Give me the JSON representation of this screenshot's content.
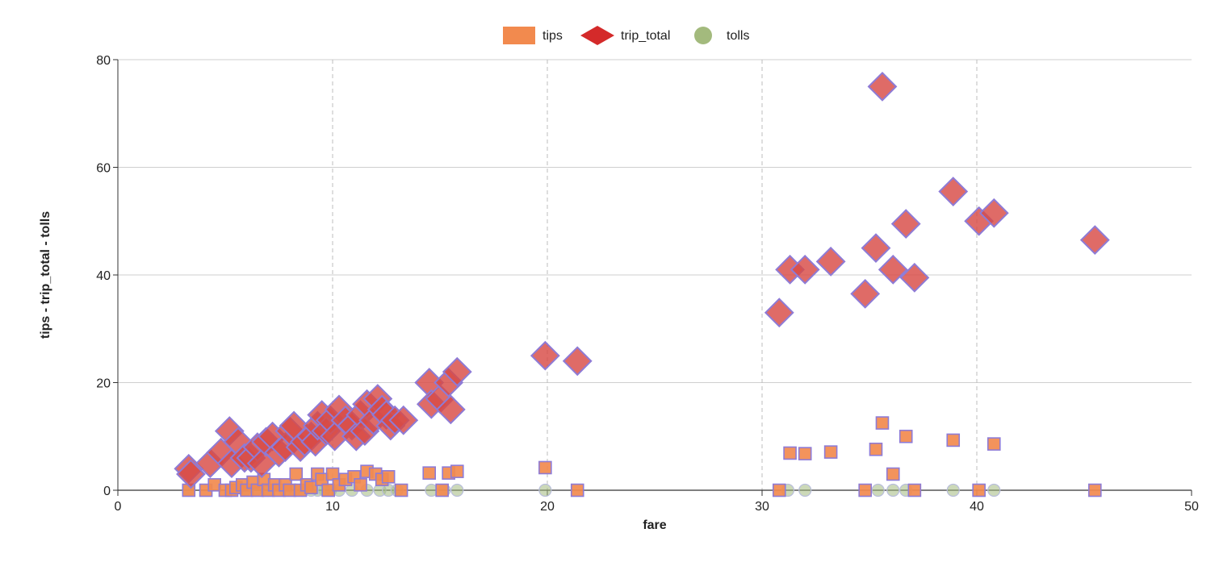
{
  "chart_data": {
    "type": "scatter",
    "title": "",
    "xlabel": "fare",
    "ylabel": "tips - trip_total - tolls",
    "xlim": [
      0,
      50
    ],
    "ylim": [
      0,
      80
    ],
    "x_ticks": [
      0,
      10,
      20,
      30,
      40,
      50
    ],
    "y_ticks": [
      0,
      20,
      40,
      60,
      80
    ],
    "x_grid": "dashed",
    "y_grid": "solid",
    "legend_position": "top-center",
    "series": [
      {
        "name": "tips",
        "marker": "square",
        "color": "#f28a4e",
        "edge_color": "#8e7bd6",
        "points": [
          [
            3.3,
            0
          ],
          [
            4.1,
            0
          ],
          [
            4.5,
            1
          ],
          [
            5.0,
            0
          ],
          [
            5.3,
            0
          ],
          [
            5.5,
            0.5
          ],
          [
            5.8,
            1
          ],
          [
            6.0,
            0
          ],
          [
            6.3,
            1.5
          ],
          [
            6.5,
            0
          ],
          [
            6.8,
            2
          ],
          [
            7.0,
            0
          ],
          [
            7.3,
            1
          ],
          [
            7.5,
            0
          ],
          [
            7.8,
            1
          ],
          [
            8.0,
            0
          ],
          [
            8.3,
            3
          ],
          [
            8.5,
            0
          ],
          [
            8.8,
            1
          ],
          [
            9.0,
            0.5
          ],
          [
            9.3,
            3
          ],
          [
            9.5,
            2
          ],
          [
            9.8,
            0
          ],
          [
            10.0,
            3
          ],
          [
            10.3,
            1
          ],
          [
            10.6,
            2
          ],
          [
            11.0,
            2.5
          ],
          [
            11.3,
            1
          ],
          [
            11.6,
            3.5
          ],
          [
            12.0,
            3
          ],
          [
            12.3,
            2
          ],
          [
            12.6,
            2.5
          ],
          [
            13.2,
            0
          ],
          [
            14.5,
            3.2
          ],
          [
            15.1,
            0
          ],
          [
            15.4,
            3.2
          ],
          [
            15.8,
            3.5
          ],
          [
            19.9,
            4.2
          ],
          [
            21.4,
            0
          ],
          [
            30.8,
            0
          ],
          [
            31.3,
            6.9
          ],
          [
            32.0,
            6.8
          ],
          [
            33.2,
            7.1
          ],
          [
            34.8,
            0
          ],
          [
            35.3,
            7.6
          ],
          [
            35.6,
            12.5
          ],
          [
            36.1,
            3
          ],
          [
            36.7,
            10
          ],
          [
            37.1,
            0
          ],
          [
            38.9,
            9.3
          ],
          [
            40.1,
            0
          ],
          [
            40.8,
            8.6
          ],
          [
            45.5,
            0
          ]
        ]
      },
      {
        "name": "trip_total",
        "marker": "diamond",
        "color": "#d84a45",
        "edge_color": "#8e7bd6",
        "points": [
          [
            3.3,
            4
          ],
          [
            3.4,
            3
          ],
          [
            4.3,
            5
          ],
          [
            4.8,
            7
          ],
          [
            5.2,
            11
          ],
          [
            5.3,
            5
          ],
          [
            5.6,
            9
          ],
          [
            5.9,
            6
          ],
          [
            6.2,
            6
          ],
          [
            6.5,
            8
          ],
          [
            6.7,
            5
          ],
          [
            6.9,
            9
          ],
          [
            7.2,
            10
          ],
          [
            7.5,
            7
          ],
          [
            7.8,
            8
          ],
          [
            8.0,
            11
          ],
          [
            8.2,
            12
          ],
          [
            8.5,
            8
          ],
          [
            8.7,
            9
          ],
          [
            9.0,
            10
          ],
          [
            9.2,
            9
          ],
          [
            9.3,
            12
          ],
          [
            9.5,
            14
          ],
          [
            9.7,
            11
          ],
          [
            9.9,
            13
          ],
          [
            10.1,
            10
          ],
          [
            10.3,
            15
          ],
          [
            10.6,
            13
          ],
          [
            10.9,
            12
          ],
          [
            11.1,
            10
          ],
          [
            11.3,
            14
          ],
          [
            11.5,
            11
          ],
          [
            11.6,
            16
          ],
          [
            11.9,
            13
          ],
          [
            12.1,
            17
          ],
          [
            12.3,
            15
          ],
          [
            12.5,
            14
          ],
          [
            12.7,
            12
          ],
          [
            12.9,
            13
          ],
          [
            13.3,
            13
          ],
          [
            14.5,
            20
          ],
          [
            14.6,
            16
          ],
          [
            15.0,
            17
          ],
          [
            15.4,
            20
          ],
          [
            15.5,
            15
          ],
          [
            15.8,
            22
          ],
          [
            19.9,
            25
          ],
          [
            21.4,
            24
          ],
          [
            30.8,
            33
          ],
          [
            31.3,
            41
          ],
          [
            32.0,
            41
          ],
          [
            33.2,
            42.5
          ],
          [
            34.8,
            36.5
          ],
          [
            35.3,
            45
          ],
          [
            35.6,
            75
          ],
          [
            36.1,
            41
          ],
          [
            36.7,
            49.5
          ],
          [
            37.1,
            39.5
          ],
          [
            38.9,
            55.5
          ],
          [
            40.1,
            50
          ],
          [
            40.8,
            51.5
          ],
          [
            45.5,
            46.5
          ]
        ]
      },
      {
        "name": "tolls",
        "marker": "circle",
        "color": "#a3ba7d",
        "edge_color": "#b9bedc",
        "points": [
          [
            3.3,
            0
          ],
          [
            5.3,
            0
          ],
          [
            5.9,
            0
          ],
          [
            6.4,
            0
          ],
          [
            7.0,
            0
          ],
          [
            7.8,
            0
          ],
          [
            8.2,
            0
          ],
          [
            8.6,
            0
          ],
          [
            9.0,
            0
          ],
          [
            9.3,
            0
          ],
          [
            9.6,
            0
          ],
          [
            9.9,
            0
          ],
          [
            10.3,
            0
          ],
          [
            10.9,
            0
          ],
          [
            11.6,
            0
          ],
          [
            12.2,
            0
          ],
          [
            12.6,
            0
          ],
          [
            13.0,
            0
          ],
          [
            14.6,
            0
          ],
          [
            15.2,
            0
          ],
          [
            15.8,
            0
          ],
          [
            19.9,
            0
          ],
          [
            31.2,
            0
          ],
          [
            32.0,
            0
          ],
          [
            35.4,
            0
          ],
          [
            36.1,
            0
          ],
          [
            36.7,
            0
          ],
          [
            38.9,
            0
          ],
          [
            40.8,
            0
          ]
        ]
      }
    ]
  }
}
